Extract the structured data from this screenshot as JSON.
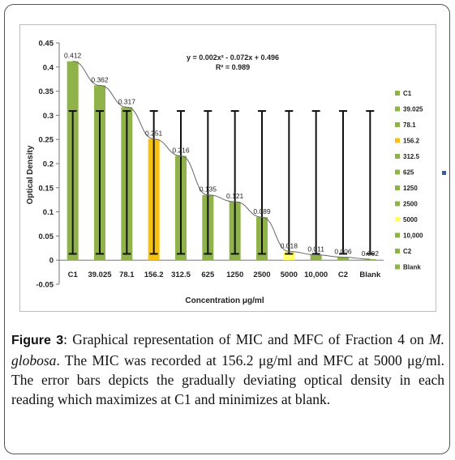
{
  "figure": {
    "label": "Figure 3",
    "caption_parts": [
      ": Graphical representation of MIC and MFC of Fraction 4 on ",
      "M. globosa",
      ". The MIC was recorded at 156.2 μg/ml and MFC at 5000 μg/ml. The error bars depicts the gradually deviating optical density in each reading which maximizes at C1 and minimizes at blank."
    ]
  },
  "chart_data": {
    "type": "bar",
    "title": "",
    "xlabel": "Concentration μg/ml",
    "ylabel": "Optical Density",
    "ylim": [
      -0.05,
      0.45
    ],
    "yticks": [
      "-0.05",
      "0",
      "0.05",
      "0.1",
      "0.15",
      "0.2",
      "0.25",
      "0.3",
      "0.35",
      "0.4",
      "0.45"
    ],
    "ytick_values": [
      -0.05,
      0,
      0.05,
      0.1,
      0.15,
      0.2,
      0.25,
      0.3,
      0.35,
      0.4,
      0.45
    ],
    "categories": [
      "C1",
      "39.025",
      "78.1",
      "156.2",
      "312.5",
      "625",
      "1250",
      "2500",
      "5000",
      "10,000",
      "C2",
      "Blank"
    ],
    "values": [
      0.412,
      0.362,
      0.317,
      0.251,
      0.216,
      0.135,
      0.121,
      0.089,
      0.018,
      0.011,
      0.006,
      0.002
    ],
    "value_labels": [
      "0.412",
      "0.362",
      "0.317",
      "0.251",
      "0.216",
      "0.135",
      "0.121",
      "0.089",
      "0.018",
      "0.011",
      "0.006",
      "0.002"
    ],
    "colors": [
      "#8fb34a",
      "#8fb34a",
      "#8fb34a",
      "#f6c20e",
      "#8fb34a",
      "#8fb34a",
      "#8fb34a",
      "#8fb34a",
      "#ffff66",
      "#8fb34a",
      "#8fb34a",
      "#8fb34a"
    ],
    "error_low": [
      0.013,
      0.013,
      0.013,
      0.013,
      0.013,
      0.013,
      0.013,
      0.013,
      0.013,
      0.013,
      0.013,
      0.013
    ],
    "error_high": [
      0.309,
      0.309,
      0.309,
      0.309,
      0.309,
      0.309,
      0.309,
      0.309,
      0.309,
      0.309,
      0.309,
      0.309
    ],
    "trendline": {
      "type": "polynomial",
      "order": 2,
      "equation": "y = 0.002x² - 0.072x + 0.496",
      "r2": "R² = 0.989",
      "coeffs": [
        0.002,
        -0.072,
        0.496
      ]
    },
    "legend": {
      "placement": "right",
      "entries": [
        "C1",
        "39.025",
        "78.1",
        "156.2",
        "312.5",
        "625",
        "1250",
        "2500",
        "5000",
        "10,000",
        "C2",
        "Blank"
      ]
    },
    "grid": false
  }
}
